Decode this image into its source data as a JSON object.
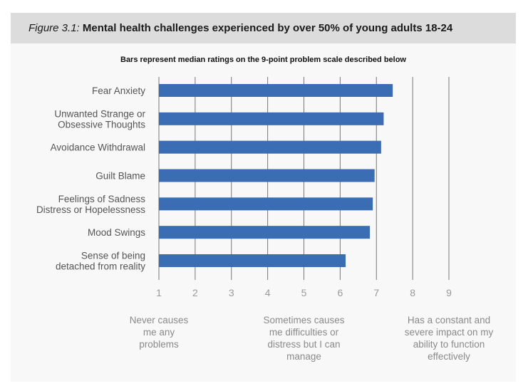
{
  "header": {
    "figure_label": "Figure 3.1:",
    "title": "Mental health challenges experienced by over 50% of young adults 18-24"
  },
  "colors": {
    "bar": "#3a6db3",
    "grid": "#777777",
    "header_bg": "#dcdcdc",
    "label": "#555555",
    "tick": "#9a9a9a"
  },
  "chart_data": {
    "type": "bar",
    "orientation": "horizontal",
    "subtitle": "Bars represent median ratings on the 9-point problem scale described below",
    "categories": [
      "Fear Anxiety",
      "Unwanted Strange or Obsessive Thoughts",
      "Avoidance Withdrawal",
      "Guilt Blame",
      "Feelings of Sadness Distress or Hopelessness",
      "Mood Swings",
      "Sense of being detached from reality"
    ],
    "category_lines": [
      [
        "Fear Anxiety"
      ],
      [
        "Unwanted Strange or",
        "Obsessive Thoughts"
      ],
      [
        "Avoidance Withdrawal"
      ],
      [
        "Guilt Blame"
      ],
      [
        "Feelings of Sadness",
        "Distress or Hopelessness"
      ],
      [
        "Mood Swings"
      ],
      [
        "Sense of being",
        "detached from reality"
      ]
    ],
    "values": [
      7.45,
      7.2,
      7.13,
      6.95,
      6.9,
      6.82,
      6.15
    ],
    "xlim": [
      1,
      9
    ],
    "xticks": [
      "1",
      "2",
      "3",
      "4",
      "5",
      "6",
      "7",
      "8",
      "9"
    ],
    "grid": true
  },
  "scale_notes": [
    {
      "value": 1,
      "lines": [
        "Never causes",
        "me any",
        "problems"
      ]
    },
    {
      "value": 5,
      "lines": [
        "Sometimes causes",
        "me difficulties or",
        "distress but I can",
        "manage"
      ]
    },
    {
      "value": 9,
      "lines": [
        "Has a constant and",
        "severe impact on my",
        "ability to function",
        "effectively"
      ]
    }
  ]
}
